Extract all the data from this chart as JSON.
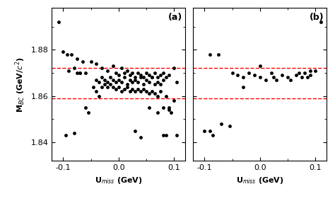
{
  "hline_upper": 1.872,
  "hline_lower": 1.859,
  "xlim": [
    -0.12,
    0.12
  ],
  "ylim": [
    1.832,
    1.898
  ],
  "yticks": [
    1.84,
    1.86,
    1.88
  ],
  "xticks": [
    -0.1,
    0,
    0.1
  ],
  "xlabel": "U$_{miss}$ (GeV)",
  "ylabel": "M$_{BC}$ (GeV/$c^{2}$)",
  "label_a": "(a)",
  "label_b": "(b)",
  "dot_color": "#000000",
  "hline_color": "#ff0000",
  "marker_size": 3.5,
  "panel_a_x": [
    -0.108,
    -0.093,
    -0.085,
    -0.075,
    -0.065,
    -0.05,
    -0.04,
    -0.03,
    -0.02,
    -0.01,
    -0.005,
    0.0,
    0.005,
    0.01,
    0.015,
    0.02,
    0.025,
    0.03,
    0.035,
    0.04,
    0.045,
    0.05,
    0.055,
    0.06,
    0.065,
    0.07,
    0.075,
    0.08,
    0.085,
    0.09,
    0.1,
    0.105,
    -0.04,
    -0.035,
    -0.03,
    -0.025,
    -0.02,
    -0.015,
    -0.01,
    -0.005,
    0.0,
    0.005,
    0.01,
    0.015,
    0.02,
    0.025,
    0.03,
    0.035,
    0.04,
    0.045,
    0.05,
    0.055,
    0.06,
    0.065,
    0.07,
    0.075,
    0.08,
    -0.03,
    -0.025,
    -0.02,
    -0.015,
    -0.01,
    -0.005,
    0.0,
    0.005,
    0.01,
    0.015,
    0.02,
    0.025,
    0.03,
    0.035,
    0.04,
    0.045,
    0.05,
    0.055,
    0.06,
    0.065,
    0.07,
    0.075,
    0.085,
    0.1,
    -0.07,
    -0.045,
    -0.04,
    -0.035,
    0.055,
    0.09,
    -0.1,
    -0.09,
    -0.08,
    -0.075,
    -0.07,
    -0.06,
    0.07,
    0.08,
    0.09,
    0.095,
    0.105,
    -0.06,
    -0.055,
    0.03,
    0.08,
    -0.08,
    -0.095,
    0.04,
    0.085
  ],
  "panel_a_y": [
    1.892,
    1.878,
    1.878,
    1.876,
    1.875,
    1.875,
    1.874,
    1.872,
    1.871,
    1.873,
    1.87,
    1.869,
    1.872,
    1.87,
    1.871,
    1.869,
    1.87,
    1.868,
    1.87,
    1.869,
    1.868,
    1.87,
    1.869,
    1.868,
    1.87,
    1.868,
    1.869,
    1.87,
    1.868,
    1.869,
    1.872,
    1.866,
    1.867,
    1.866,
    1.868,
    1.867,
    1.866,
    1.868,
    1.867,
    1.866,
    1.867,
    1.866,
    1.868,
    1.865,
    1.867,
    1.866,
    1.867,
    1.866,
    1.868,
    1.865,
    1.867,
    1.866,
    1.868,
    1.865,
    1.866,
    1.865,
    1.867,
    1.864,
    1.865,
    1.864,
    1.865,
    1.864,
    1.863,
    1.864,
    1.862,
    1.863,
    1.864,
    1.862,
    1.863,
    1.862,
    1.863,
    1.862,
    1.863,
    1.862,
    1.861,
    1.862,
    1.861,
    1.86,
    1.862,
    1.86,
    1.858,
    1.87,
    1.864,
    1.862,
    1.86,
    1.855,
    1.855,
    1.879,
    1.871,
    1.872,
    1.87,
    1.87,
    1.87,
    1.853,
    1.855,
    1.854,
    1.853,
    1.843,
    1.855,
    1.853,
    1.845,
    1.843,
    1.844,
    1.843,
    1.842,
    1.843
  ],
  "panel_b_x": [
    -0.09,
    -0.075,
    0.0,
    0.09,
    0.1,
    0.11,
    -0.05,
    -0.04,
    -0.03,
    -0.02,
    -0.01,
    0.0,
    0.01,
    0.02,
    0.025,
    0.03,
    0.04,
    0.05,
    0.055,
    0.065,
    0.07,
    0.075,
    0.08,
    0.085,
    0.09,
    -0.1,
    -0.09,
    -0.085,
    -0.03,
    -0.07,
    -0.055
  ],
  "panel_b_y": [
    1.878,
    1.878,
    1.873,
    1.871,
    1.871,
    1.892,
    1.87,
    1.869,
    1.868,
    1.87,
    1.869,
    1.868,
    1.867,
    1.87,
    1.868,
    1.867,
    1.869,
    1.868,
    1.867,
    1.869,
    1.87,
    1.868,
    1.87,
    1.868,
    1.869,
    1.845,
    1.845,
    1.843,
    1.864,
    1.848,
    1.847
  ]
}
